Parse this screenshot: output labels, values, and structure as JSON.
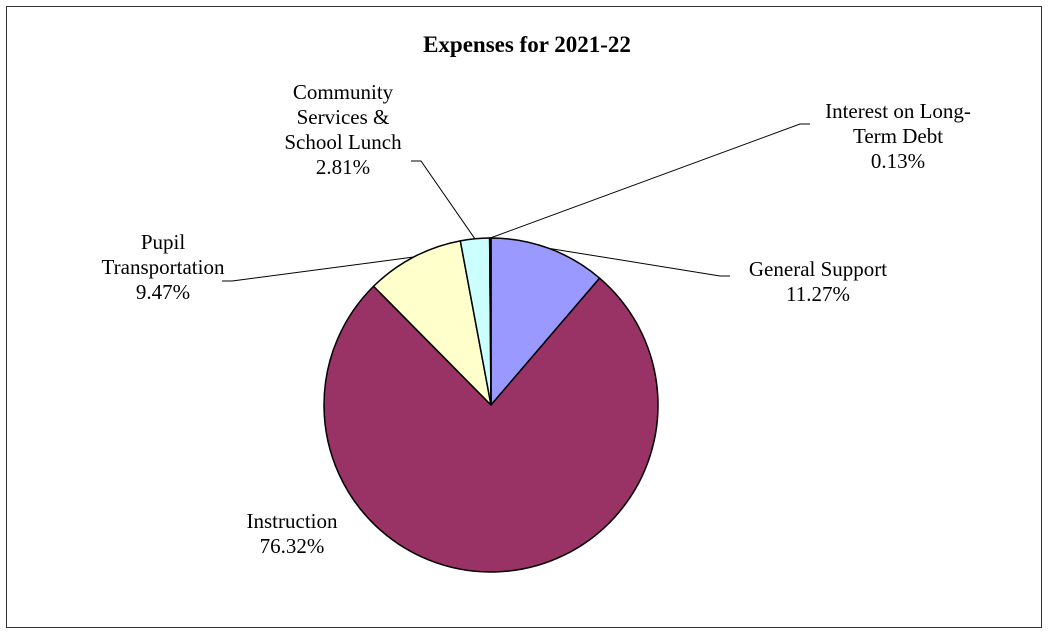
{
  "chart_data": {
    "type": "pie",
    "title": "Expenses for 2021-22",
    "start_angle_deg": 0,
    "direction": "clockwise",
    "slices": [
      {
        "label": "General Support",
        "value": 11.27,
        "value_label": "11.27%",
        "color": "#9999ff"
      },
      {
        "label": "Instruction",
        "value": 76.32,
        "value_label": "76.32%",
        "color": "#993366"
      },
      {
        "label": "Pupil Transportation",
        "value": 9.47,
        "value_label": "9.47%",
        "color": "#ffffcc"
      },
      {
        "label": "Community Services & School Lunch",
        "value": 2.81,
        "value_label": "2.81%",
        "color": "#ccffff"
      },
      {
        "label": "Interest on Long-Term Debt",
        "value": 0.13,
        "value_label": "0.13%",
        "color": "#660066"
      }
    ]
  }
}
